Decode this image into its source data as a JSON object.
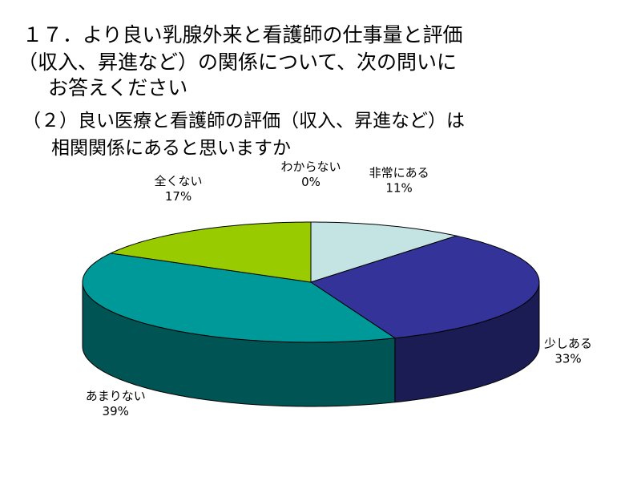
{
  "chart_data": {
    "type": "pie3d",
    "title": [
      "１７．より良い乳腺外来と看護師の仕事量と評価",
      "（収入、昇進など）の関係について、次の問いに",
      "お答えください"
    ],
    "subtitle": [
      "（２）良い医療と看護師の評価（収入、昇進など）は",
      "相関関係にあると思いますか"
    ],
    "categories": [
      "非常にある",
      "少しある",
      "あまりない",
      "全くない",
      "わからない"
    ],
    "values": [
      11,
      33,
      39,
      17,
      0
    ],
    "value_labels": [
      "11%",
      "33%",
      "39%",
      "17%",
      "0%"
    ],
    "colors": [
      "#c4e4e4",
      "#333399",
      "#009999",
      "#99cc00",
      "#ffffcc"
    ]
  }
}
